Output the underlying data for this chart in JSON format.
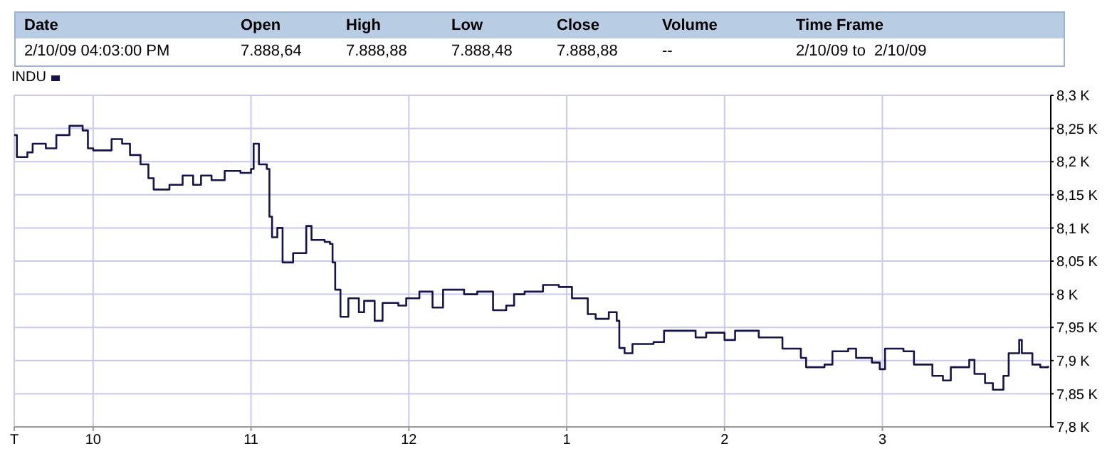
{
  "chart_data": {
    "type": "step",
    "annotations": [
      "Date",
      "Open",
      "High",
      "Low",
      "Close",
      "Volume",
      "Time Frame",
      "2/10/09 04:03:00 PM",
      "7.888,64",
      "7.888,88",
      "7.888,48",
      "7.888,88",
      "--",
      "2/10/09 to  2/10/09"
    ],
    "x": [
      "--02-10T09:30",
      "--02-10T09:31",
      "--02-10T09:35",
      "--02-10T09:37",
      "--02-10T09:42",
      "--02-10T09:46",
      "--02-10T09:51",
      "--02-10T09:56",
      "--02-10T09:58",
      "--02-10T10:00",
      "--02-10T10:07",
      "--02-10T10:11",
      "--02-10T10:14",
      "--02-10T10:18",
      "--02-10T10:21",
      "--02-10T10:23",
      "--02-10T10:29",
      "--02-10T10:34",
      "--02-10T10:38",
      "--02-10T10:41",
      "--02-10T10:45",
      "--02-10T10:50",
      "--02-10T10:56",
      "--02-10T11:00",
      "--02-10T11:01",
      "--02-10T11:03",
      "--02-10T11:06",
      "--02-10T11:07",
      "--02-10T11:08",
      "--02-10T11:10",
      "--02-10T11:12",
      "--02-10T11:16",
      "--02-10T11:19",
      "--02-10T11:21",
      "--02-10T11:23",
      "--02-10T11:28",
      "--02-10T11:30",
      "--02-10T11:31",
      "--02-10T11:32",
      "--02-10T11:34",
      "--02-10T11:37",
      "--02-10T11:41",
      "--02-10T11:43",
      "--02-10T11:47",
      "--02-10T11:50",
      "--02-10T11:56",
      "--02-10T11:59",
      "--02-10T12:04",
      "--02-10T12:09",
      "--02-10T12:13",
      "--02-10T12:21",
      "--02-10T12:26",
      "--02-10T12:32",
      "--02-10T12:37",
      "--02-10T12:40",
      "--02-10T12:44",
      "--02-10T12:51",
      "--02-10T12:57",
      "--02-10T13:02",
      "--02-10T13:08",
      "--02-10T13:11",
      "--02-10T13:16",
      "--02-10T13:19",
      "--02-10T13:20",
      "--02-10T13:22",
      "--02-10T13:25",
      "--02-10T13:33",
      "--02-10T13:37",
      "--02-10T13:46",
      "--02-10T13:49",
      "--02-10T13:53",
      "--02-10T14:00",
      "--02-10T14:04",
      "--02-10T14:13",
      "--02-10T14:22",
      "--02-10T14:29",
      "--02-10T14:31",
      "--02-10T14:38",
      "--02-10T14:41",
      "--02-10T14:47",
      "--02-10T14:50",
      "--02-10T14:56",
      "--02-10T14:59",
      "--02-10T15:01",
      "--02-10T15:08",
      "--02-10T15:12",
      "--02-10T15:19",
      "--02-10T15:23",
      "--02-10T15:26",
      "--02-10T15:33",
      "--02-10T15:35",
      "--02-10T15:39",
      "--02-10T15:42",
      "--02-10T15:46",
      "--02-10T15:48",
      "--02-10T15:52",
      "--02-10T15:53",
      "--02-10T15:57",
      "--02-10T16:00",
      "--02-10T16:03"
    ],
    "series": [
      {
        "name": "INDU",
        "color": "#14144a",
        "values": [
          8.24,
          8.207,
          8.214,
          8.227,
          8.22,
          8.24,
          8.254,
          8.247,
          8.22,
          8.217,
          8.234,
          8.227,
          8.21,
          8.196,
          8.175,
          8.158,
          8.165,
          8.179,
          8.165,
          8.179,
          8.172,
          8.186,
          8.183,
          8.189,
          8.227,
          8.196,
          8.189,
          8.117,
          8.086,
          8.1,
          8.048,
          8.062,
          8.062,
          8.103,
          8.082,
          8.079,
          8.076,
          8.048,
          8.007,
          7.966,
          7.994,
          7.973,
          7.99,
          7.96,
          7.987,
          7.983,
          7.994,
          8.004,
          7.98,
          8.007,
          8.0,
          8.004,
          7.976,
          7.983,
          8.0,
          8.004,
          8.014,
          8.011,
          7.994,
          7.97,
          7.963,
          7.973,
          7.96,
          7.919,
          7.911,
          7.925,
          7.928,
          7.945,
          7.945,
          7.935,
          7.942,
          7.931,
          7.945,
          7.935,
          7.918,
          7.904,
          7.89,
          7.894,
          7.914,
          7.918,
          7.904,
          7.897,
          7.887,
          7.918,
          7.914,
          7.894,
          7.877,
          7.87,
          7.89,
          7.901,
          7.88,
          7.866,
          7.856,
          7.877,
          7.911,
          7.931,
          7.911,
          7.894,
          7.89,
          7.892
        ]
      }
    ],
    "xlim": [
      "--02-10T09:30",
      "--02-10T16:04"
    ],
    "xticks": [
      {
        "value": "--02-10T09:30",
        "label": "T"
      },
      {
        "value": "--02-10T10:00",
        "label": "10"
      },
      {
        "value": "--02-10T11:00",
        "label": "11"
      },
      {
        "value": "--02-10T12:00",
        "label": "12"
      },
      {
        "value": "--02-10T13:00",
        "label": "1"
      },
      {
        "value": "--02-10T14:00",
        "label": "2"
      },
      {
        "value": "--02-10T15:00",
        "label": "3"
      }
    ],
    "ylim": [
      7.8,
      8.3
    ],
    "yticks": [
      {
        "value": 7.8,
        "label": "7,8 K"
      },
      {
        "value": 7.85,
        "label": "7,85 K"
      },
      {
        "value": 7.9,
        "label": "7,9 K"
      },
      {
        "value": 7.95,
        "label": "7,95 K"
      },
      {
        "value": 8,
        "label": "8 K"
      },
      {
        "value": 8.05,
        "label": "8,05 K"
      },
      {
        "value": 8.1,
        "label": "8,1 K"
      },
      {
        "value": 8.15,
        "label": "8,15 K"
      },
      {
        "value": 8.2,
        "label": "8,2 K"
      },
      {
        "value": 8.25,
        "label": "8,25 K"
      },
      {
        "value": 8.3,
        "label": "8,3 K"
      }
    ],
    "grid": true,
    "legend": "top left"
  }
}
